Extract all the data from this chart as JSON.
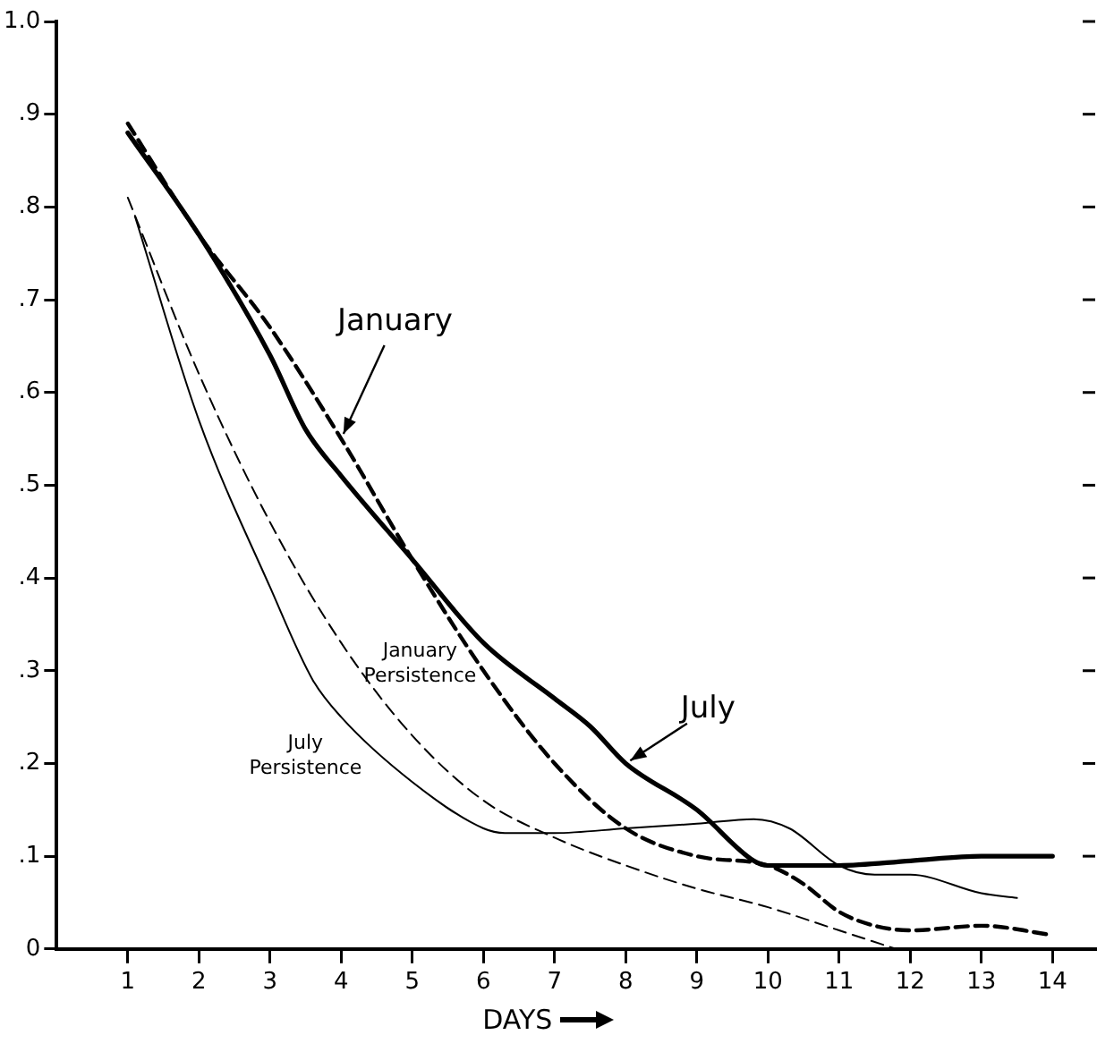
{
  "chart_data": {
    "type": "line",
    "xlabel": "DAYS",
    "xlim": [
      0,
      14.6
    ],
    "xticks": [
      1,
      2,
      3,
      4,
      5,
      6,
      7,
      8,
      9,
      10,
      11,
      12,
      13,
      14
    ],
    "ylim": [
      0,
      1.0
    ],
    "yticks": [
      0,
      {
        "value": 0.1,
        "label": ".1"
      },
      {
        "value": 0.2,
        "label": ".2"
      },
      {
        "value": 0.3,
        "label": ".3"
      },
      {
        "value": 0.4,
        "label": ".4"
      },
      {
        "value": 0.5,
        "label": ".5"
      },
      {
        "value": 0.6,
        "label": ".6"
      },
      {
        "value": 0.7,
        "label": ".7"
      },
      {
        "value": 0.8,
        "label": ".8"
      },
      {
        "value": 0.9,
        "label": ".9"
      },
      {
        "value": 1.0,
        "label": "1.0"
      }
    ],
    "grid": false,
    "legend": false,
    "marker": "none",
    "series": [
      {
        "name": "January",
        "color": "#000000",
        "line_style": "dashed",
        "x": [
          1,
          2,
          3,
          4,
          5,
          6,
          7,
          8,
          9,
          10,
          10.5,
          11,
          11.5,
          12,
          13,
          14
        ],
        "values": [
          0.89,
          0.77,
          0.67,
          0.55,
          0.42,
          0.3,
          0.2,
          0.13,
          0.1,
          0.09,
          0.07,
          0.04,
          0.025,
          0.02,
          0.025,
          0.015
        ]
      },
      {
        "name": "July",
        "color": "#000000",
        "line_style": "solid",
        "x": [
          1,
          2,
          3,
          3.5,
          4,
          5,
          6,
          7,
          7.5,
          8,
          9,
          9.8,
          10,
          11,
          12,
          13,
          14
        ],
        "values": [
          0.88,
          0.77,
          0.64,
          0.56,
          0.51,
          0.42,
          0.33,
          0.27,
          0.24,
          0.2,
          0.15,
          0.095,
          0.09,
          0.09,
          0.095,
          0.1,
          0.1
        ]
      },
      {
        "name": "January Persistence",
        "color": "#000000",
        "line_style": "dashed",
        "x": [
          1,
          2,
          3,
          4,
          5,
          6,
          7,
          8,
          9,
          10,
          11,
          11.8
        ],
        "values": [
          0.81,
          0.62,
          0.46,
          0.33,
          0.23,
          0.16,
          0.12,
          0.09,
          0.065,
          0.045,
          0.02,
          0
        ]
      },
      {
        "name": "July Persistence",
        "color": "#000000",
        "line_style": "solid",
        "x": [
          1.1,
          2,
          3,
          3.6,
          4,
          5,
          6,
          6.3,
          7,
          8,
          9,
          9.8,
          10.3,
          11,
          11.5,
          12,
          13,
          13.5
        ],
        "values": [
          0.79,
          0.57,
          0.39,
          0.29,
          0.25,
          0.18,
          0.13,
          0.125,
          0.125,
          0.13,
          0.135,
          0.14,
          0.13,
          0.09,
          0.08,
          0.08,
          0.06,
          0.055
        ]
      }
    ]
  }
}
